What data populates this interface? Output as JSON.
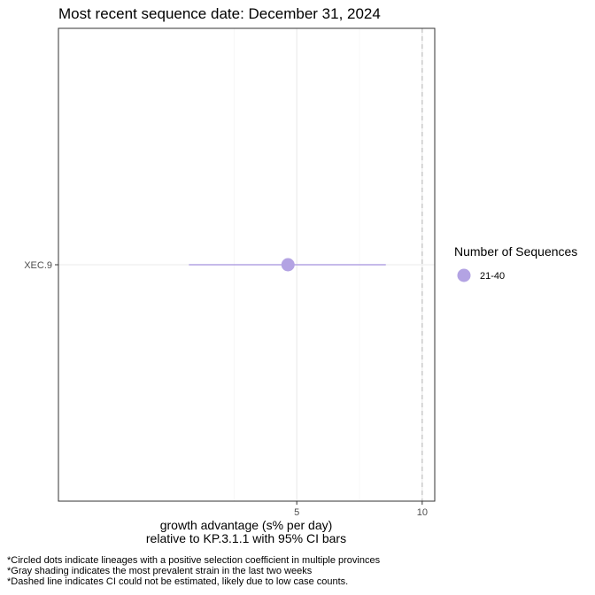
{
  "chart_data": {
    "type": "scatter",
    "title": "Most recent sequence date: December 31, 2024",
    "xlabel_line1": "growth advantage (s% per day)",
    "xlabel_line2": "relative to  KP.3.1.1  with 95% CI bars",
    "ylabel": "",
    "xlim": [
      -4.5,
      10.5
    ],
    "x_ticks": [
      5,
      10
    ],
    "x_minor_ticks": [
      2.5,
      7.5
    ],
    "grid": true,
    "categories": [
      "XEC.9"
    ],
    "points": [
      {
        "lineage": "XEC.9",
        "estimate": 4.65,
        "ci_low": 0.7,
        "ci_high": 8.55,
        "sequences": "21-40",
        "color": "#b3a3e3"
      }
    ],
    "reference_line": {
      "x": 10,
      "style": "dashed",
      "color": "#bfbfbf"
    },
    "legend": {
      "title": "Number of Sequences",
      "position": "right",
      "items": [
        {
          "label": "21-40",
          "color": "#b3a3e3"
        }
      ]
    },
    "footnotes": [
      "*Circled dots indicate lineages with a positive selection coefficient in multiple provinces",
      "*Gray shading indicates the most prevalent strain in the last two weeks",
      "*Dashed line indicates CI could not be estimated, likely due to low case counts."
    ]
  }
}
